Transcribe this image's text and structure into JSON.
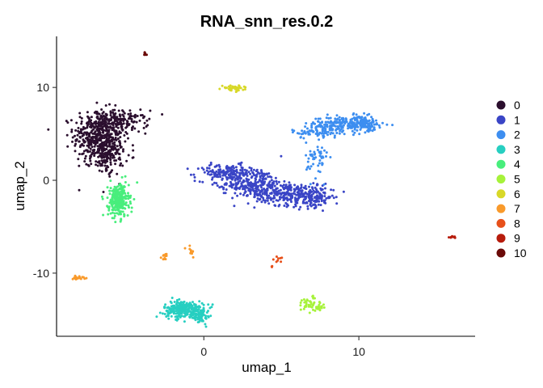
{
  "chart_data": {
    "type": "scatter",
    "title": "RNA_snn_res.0.2",
    "xlabel": "umap_1",
    "ylabel": "umap_2",
    "xlim": [
      -9.5,
      17.5
    ],
    "ylim": [
      -16.8,
      15.5
    ],
    "xticks": [
      0,
      10
    ],
    "yticks": [
      -10,
      0,
      10
    ],
    "grid": false,
    "legend_position": "right",
    "series": [
      {
        "name": "0",
        "color": "#2b0f2e",
        "clusters": [
          {
            "cx": -6.8,
            "cy": 4.8,
            "sx": 0.8,
            "sy": 1.4,
            "n": 420
          },
          {
            "cx": -5.4,
            "cy": 6.3,
            "sx": 0.9,
            "sy": 0.6,
            "n": 160
          },
          {
            "cx": -6.2,
            "cy": 2.6,
            "sx": 0.55,
            "sy": 1.0,
            "n": 140
          }
        ]
      },
      {
        "name": "1",
        "color": "#3a45c6",
        "clusters": [
          {
            "cx": 1.5,
            "cy": 0.8,
            "sx": 1.0,
            "sy": 0.45,
            "n": 160
          },
          {
            "cx": 3.5,
            "cy": -0.5,
            "sx": 0.9,
            "sy": 0.9,
            "n": 180
          },
          {
            "cx": 5.5,
            "cy": -1.5,
            "sx": 1.1,
            "sy": 0.6,
            "n": 220
          },
          {
            "cx": 7.2,
            "cy": -1.8,
            "sx": 0.6,
            "sy": 0.55,
            "n": 120
          },
          {
            "cx": 2.5,
            "cy": -0.5,
            "sx": 0.8,
            "sy": 0.5,
            "n": 80
          }
        ]
      },
      {
        "name": "2",
        "color": "#3d8ef0",
        "clusters": [
          {
            "cx": 9.0,
            "cy": 6.0,
            "sx": 1.1,
            "sy": 0.45,
            "n": 220
          },
          {
            "cx": 10.3,
            "cy": 6.2,
            "sx": 0.4,
            "sy": 0.35,
            "n": 90
          },
          {
            "cx": 7.3,
            "cy": 5.2,
            "sx": 0.8,
            "sy": 0.35,
            "n": 70
          },
          {
            "cx": 7.3,
            "cy": 2.2,
            "sx": 0.35,
            "sy": 1.0,
            "n": 50
          }
        ]
      },
      {
        "name": "3",
        "color": "#27cfc1",
        "clusters": [
          {
            "cx": -1.3,
            "cy": -13.9,
            "sx": 0.65,
            "sy": 0.45,
            "n": 260
          },
          {
            "cx": -0.2,
            "cy": -14.6,
            "sx": 0.3,
            "sy": 0.45,
            "n": 60
          }
        ]
      },
      {
        "name": "4",
        "color": "#48ee7c",
        "clusters": [
          {
            "cx": -5.5,
            "cy": -2.2,
            "sx": 0.33,
            "sy": 0.9,
            "n": 260
          }
        ]
      },
      {
        "name": "5",
        "color": "#a6f23a",
        "clusters": [
          {
            "cx": 6.8,
            "cy": -13.3,
            "sx": 0.4,
            "sy": 0.4,
            "n": 40
          },
          {
            "cx": 7.5,
            "cy": -13.7,
            "sx": 0.3,
            "sy": 0.2,
            "n": 14
          }
        ]
      },
      {
        "name": "6",
        "color": "#d8d828",
        "clusters": [
          {
            "cx": 1.9,
            "cy": 9.9,
            "sx": 0.35,
            "sy": 0.15,
            "n": 45
          }
        ]
      },
      {
        "name": "7",
        "color": "#f99a2b",
        "clusters": [
          {
            "cx": -8.1,
            "cy": -10.5,
            "sx": 0.25,
            "sy": 0.1,
            "n": 20
          },
          {
            "cx": -2.5,
            "cy": -8.2,
            "sx": 0.12,
            "sy": 0.15,
            "n": 12
          },
          {
            "cx": -0.8,
            "cy": -7.6,
            "sx": 0.15,
            "sy": 0.35,
            "n": 10
          }
        ]
      },
      {
        "name": "8",
        "color": "#e7501a",
        "clusters": [
          {
            "cx": 4.9,
            "cy": -8.5,
            "sx": 0.2,
            "sy": 0.15,
            "n": 8
          },
          {
            "cx": 4.4,
            "cy": -9.3,
            "sx": 0.05,
            "sy": 0.1,
            "n": 3
          }
        ]
      },
      {
        "name": "9",
        "color": "#b71c0c",
        "clusters": [
          {
            "cx": 16.0,
            "cy": -6.1,
            "sx": 0.18,
            "sy": 0.08,
            "n": 12
          }
        ]
      },
      {
        "name": "10",
        "color": "#6a0a08",
        "clusters": [
          {
            "cx": -3.8,
            "cy": 13.6,
            "sx": 0.05,
            "sy": 0.15,
            "n": 8
          }
        ]
      }
    ]
  }
}
